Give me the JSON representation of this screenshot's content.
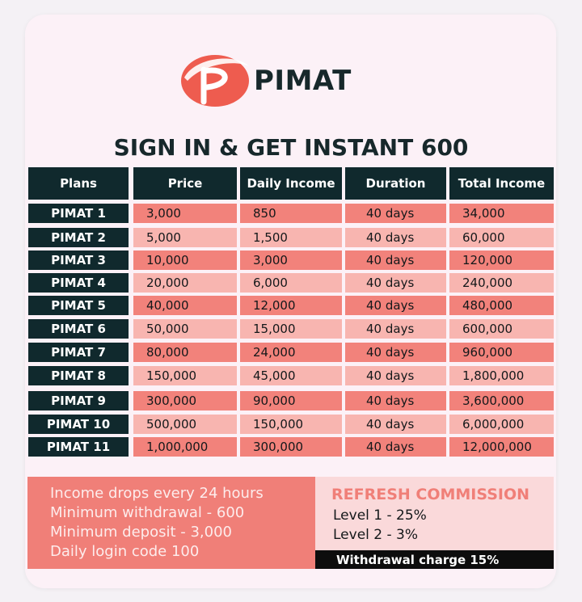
{
  "brand": {
    "name": "PIMAT",
    "logo_mark": "p-swoosh-icon",
    "logo_color": "#ee5c4f"
  },
  "headline": "SIGN IN & GET INSTANT 600",
  "table": {
    "headers": [
      "Plans",
      "Price",
      "Daily Income",
      "Duration",
      "Total Income"
    ],
    "rows": [
      [
        "PIMAT 1",
        "3,000",
        "850",
        "40 days",
        "34,000"
      ],
      [
        "PIMAT 2",
        "5,000",
        "1,500",
        "40 days",
        "60,000"
      ],
      [
        "PIMAT 3",
        "10,000",
        "3,000",
        "40 days",
        "120,000"
      ],
      [
        "PIMAT 4",
        "20,000",
        "6,000",
        "40 days",
        "240,000"
      ],
      [
        "PIMAT 5",
        "40,000",
        "12,000",
        "40 days",
        "480,000"
      ],
      [
        "PIMAT 6",
        "50,000",
        "15,000",
        "40 days",
        "600,000"
      ],
      [
        "PIMAT 7",
        "80,000",
        "24,000",
        "40 days",
        "960,000"
      ],
      [
        "PIMAT 8",
        "150,000",
        "45,000",
        "40 days",
        "1,800,000"
      ],
      [
        "PIMAT 9",
        "300,000",
        "90,000",
        "40 days",
        "3,600,000"
      ],
      [
        "PIMAT 10",
        "500,000",
        "150,000",
        "40 days",
        "6,000,000"
      ],
      [
        "PIMAT 11",
        "1,000,000",
        "300,000",
        "40 days",
        "12,000,000"
      ]
    ]
  },
  "info": {
    "lines": [
      "Income drops every 24 hours",
      "Minimum withdrawal - 600",
      "Minimum deposit - 3,000",
      "Daily login code 100"
    ]
  },
  "commission": {
    "title": "REFRESH COMMISSION",
    "levels": [
      "Level 1 - 25%",
      "Level 2 - 3%"
    ],
    "withdrawal_charge": "Withdrawal charge 15%"
  },
  "colors": {
    "dark": "#10292d",
    "row_dark": "#f2827b",
    "row_light": "#f8b5b0",
    "accent": "#f07f78"
  }
}
